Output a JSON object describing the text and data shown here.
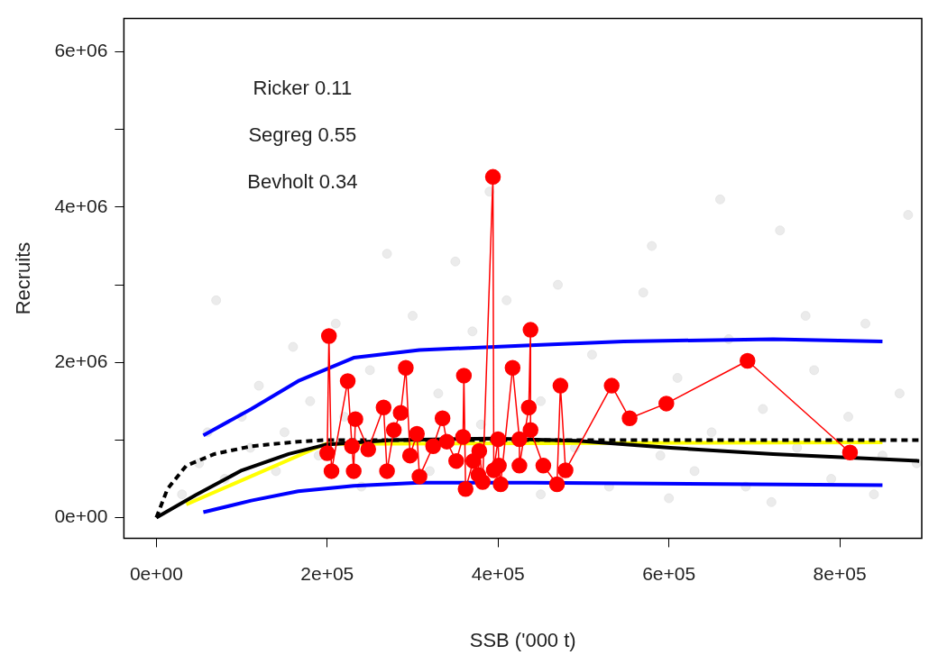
{
  "chart_data": {
    "type": "scatter",
    "xlabel": "SSB ('000 t)",
    "ylabel": "Recruits",
    "annotations": [
      "Ricker 0.11",
      "Segreg 0.55",
      "Bevholt 0.34"
    ],
    "xlim": [
      -38000,
      896000
    ],
    "ylim": [
      -265000,
      6430000
    ],
    "xticks": [
      {
        "value": 0,
        "label": "0e+00"
      },
      {
        "value": 200000,
        "label": "2e+05"
      },
      {
        "value": 400000,
        "label": "4e+05"
      },
      {
        "value": 600000,
        "label": "6e+05"
      },
      {
        "value": 800000,
        "label": "8e+05"
      }
    ],
    "yticks": [
      {
        "value": 0,
        "label": "0e+00"
      },
      {
        "value": 1000000,
        "label": null
      },
      {
        "value": 2000000,
        "label": "2e+06"
      },
      {
        "value": 3000000,
        "label": null
      },
      {
        "value": 4000000,
        "label": "4e+06"
      },
      {
        "value": 5000000,
        "label": null
      },
      {
        "value": 6000000,
        "label": "6e+06"
      }
    ],
    "grid": false,
    "series": [
      {
        "type": "scatter",
        "color": "#dddddd",
        "marker": "circle",
        "x": [
          30000,
          50000,
          60000,
          70000,
          80000,
          100000,
          110000,
          120000,
          140000,
          150000,
          160000,
          180000,
          190000,
          210000,
          220000,
          240000,
          250000,
          270000,
          280000,
          300000,
          320000,
          330000,
          350000,
          370000,
          380000,
          390000,
          410000,
          430000,
          450000,
          470000,
          490000,
          510000,
          530000,
          550000,
          570000,
          590000,
          610000,
          630000,
          650000,
          670000,
          690000,
          710000,
          730000,
          750000,
          770000,
          790000,
          810000,
          830000,
          850000,
          870000,
          880000,
          890000,
          580000,
          660000,
          760000,
          450000,
          600000,
          720000,
          840000
        ],
        "values": [
          300000,
          700000,
          1100000,
          2800000,
          500000,
          1300000,
          900000,
          1700000,
          600000,
          1100000,
          2200000,
          1500000,
          800000,
          2500000,
          1300000,
          400000,
          1900000,
          3400000,
          null,
          2600000,
          600000,
          1600000,
          3300000,
          2400000,
          1200000,
          4200000,
          2800000,
          null,
          1500000,
          3000000,
          900000,
          2100000,
          400000,
          null,
          2900000,
          800000,
          1800000,
          600000,
          1100000,
          2300000,
          400000,
          1400000,
          3700000,
          900000,
          1900000,
          500000,
          1300000,
          2500000,
          800000,
          1600000,
          3900000,
          700000,
          3500000,
          4100000,
          2600000,
          300000,
          250000,
          200000,
          300000
        ]
      },
      {
        "type": "line",
        "color": "#0000ff",
        "marker": "none",
        "line_style": "solid",
        "x": [
          55000,
          111000,
          166000,
          231000,
          308000,
          438000,
          547000,
          722000,
          850000
        ],
        "values": [
          1060000,
          1400000,
          1760000,
          2060000,
          2160000,
          2220000,
          2270000,
          2300000,
          2270000
        ]
      },
      {
        "type": "line",
        "color": "#0000ff",
        "marker": "none",
        "line_style": "solid",
        "x": [
          55000,
          111000,
          166000,
          231000,
          308000,
          438000,
          850000
        ],
        "values": [
          70000,
          220000,
          340000,
          410000,
          450000,
          450000,
          420000
        ]
      },
      {
        "type": "line",
        "color": "#ffff00",
        "marker": "none",
        "line_style": "solid",
        "x": [
          35000,
          198000,
          850000
        ],
        "values": [
          170000,
          950000,
          970000
        ]
      },
      {
        "type": "line",
        "color": "#000000",
        "marker": "none",
        "line_style": "solid",
        "x": [
          0,
          46000,
          100000,
          155000,
          198000,
          275000,
          395000,
          493000,
          602000,
          722000,
          893000
        ],
        "values": [
          0,
          290000,
          610000,
          820000,
          940000,
          1000000,
          1020000,
          990000,
          900000,
          820000,
          730000
        ]
      },
      {
        "type": "line",
        "color": "#000000",
        "marker": "none",
        "line_style": "dashed",
        "x": [
          0,
          13000,
          35000,
          68000,
          111000,
          166000,
          198000,
          400000,
          600000,
          893000
        ],
        "values": [
          0,
          370000,
          670000,
          820000,
          920000,
          980000,
          1000000,
          1000000,
          1000000,
          1000000
        ]
      },
      {
        "type": "line",
        "color": "#ff0000",
        "marker": "circle",
        "line_style": "solid",
        "x": [
          200000,
          202000,
          205000,
          224000,
          229000,
          231000,
          233000,
          248000,
          266000,
          270000,
          278000,
          286000,
          292000,
          297000,
          305000,
          308000,
          324000,
          335000,
          340000,
          351000,
          359000,
          360000,
          362000,
          371000,
          377000,
          378000,
          382000,
          394000,
          395000,
          400000,
          401000,
          403000,
          417000,
          425000,
          425000,
          436000,
          438000,
          438000,
          453000,
          469000,
          473000,
          479000,
          533000,
          554000,
          597000,
          692000,
          812000
        ],
        "values": [
          830000,
          2340000,
          600000,
          1760000,
          920000,
          600000,
          1270000,
          880000,
          1420000,
          600000,
          1130000,
          1350000,
          1930000,
          800000,
          1080000,
          530000,
          920000,
          1280000,
          980000,
          730000,
          1040000,
          1830000,
          370000,
          730000,
          550000,
          860000,
          460000,
          4390000,
          610000,
          1010000,
          670000,
          430000,
          1930000,
          1010000,
          670000,
          1420000,
          2420000,
          1130000,
          670000,
          430000,
          1700000,
          610000,
          1700000,
          1280000,
          1470000,
          2020000,
          840000
        ]
      }
    ]
  }
}
